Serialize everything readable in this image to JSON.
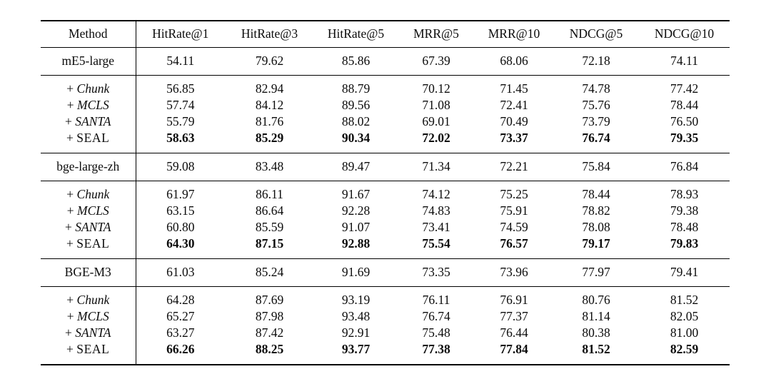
{
  "colors": {
    "background": "#ffffff",
    "text": "#0b0b0b",
    "rule": "#000000"
  },
  "table": {
    "columns": [
      "Method",
      "HitRate@1",
      "HitRate@3",
      "HitRate@5",
      "MRR@5",
      "MRR@10",
      "NDCG@5",
      "NDCG@10"
    ],
    "groups": [
      {
        "base": {
          "label": "mE5-large",
          "bold": false,
          "values": [
            "54.11",
            "79.62",
            "85.86",
            "67.39",
            "68.06",
            "72.18",
            "74.11"
          ]
        },
        "variants": [
          {
            "prefix": "+",
            "name": "Chunk",
            "italic": true,
            "spaced": false,
            "bold": false,
            "values": [
              "56.85",
              "82.94",
              "88.79",
              "70.12",
              "71.45",
              "74.78",
              "77.42"
            ]
          },
          {
            "prefix": "+",
            "name": "MCLS",
            "italic": true,
            "spaced": false,
            "bold": false,
            "values": [
              "57.74",
              "84.12",
              "89.56",
              "71.08",
              "72.41",
              "75.76",
              "78.44"
            ]
          },
          {
            "prefix": "+",
            "name": "SANTA",
            "italic": true,
            "spaced": false,
            "bold": false,
            "values": [
              "55.79",
              "81.76",
              "88.02",
              "69.01",
              "70.49",
              "73.79",
              "76.50"
            ]
          },
          {
            "prefix": "+",
            "name": "SEAL",
            "italic": false,
            "spaced": true,
            "bold": true,
            "values": [
              "58.63",
              "85.29",
              "90.34",
              "72.02",
              "73.37",
              "76.74",
              "79.35"
            ]
          }
        ]
      },
      {
        "base": {
          "label": "bge-large-zh",
          "bold": false,
          "values": [
            "59.08",
            "83.48",
            "89.47",
            "71.34",
            "72.21",
            "75.84",
            "76.84"
          ]
        },
        "variants": [
          {
            "prefix": "+",
            "name": "Chunk",
            "italic": true,
            "spaced": false,
            "bold": false,
            "values": [
              "61.97",
              "86.11",
              "91.67",
              "74.12",
              "75.25",
              "78.44",
              "78.93"
            ]
          },
          {
            "prefix": "+",
            "name": "MCLS",
            "italic": true,
            "spaced": false,
            "bold": false,
            "values": [
              "63.15",
              "86.64",
              "92.28",
              "74.83",
              "75.91",
              "78.82",
              "79.38"
            ]
          },
          {
            "prefix": "+",
            "name": "SANTA",
            "italic": true,
            "spaced": false,
            "bold": false,
            "values": [
              "60.80",
              "85.59",
              "91.07",
              "73.41",
              "74.59",
              "78.08",
              "78.48"
            ]
          },
          {
            "prefix": "+",
            "name": "SEAL",
            "italic": false,
            "spaced": true,
            "bold": true,
            "values": [
              "64.30",
              "87.15",
              "92.88",
              "75.54",
              "76.57",
              "79.17",
              "79.83"
            ]
          }
        ]
      },
      {
        "base": {
          "label": "BGE-M3",
          "bold": false,
          "values": [
            "61.03",
            "85.24",
            "91.69",
            "73.35",
            "73.96",
            "77.97",
            "79.41"
          ]
        },
        "variants": [
          {
            "prefix": "+",
            "name": "Chunk",
            "italic": true,
            "spaced": false,
            "bold": false,
            "values": [
              "64.28",
              "87.69",
              "93.19",
              "76.11",
              "76.91",
              "80.76",
              "81.52"
            ]
          },
          {
            "prefix": "+",
            "name": "MCLS",
            "italic": true,
            "spaced": false,
            "bold": false,
            "values": [
              "65.27",
              "87.98",
              "93.48",
              "76.74",
              "77.37",
              "81.14",
              "82.05"
            ]
          },
          {
            "prefix": "+",
            "name": "SANTA",
            "italic": true,
            "spaced": false,
            "bold": false,
            "values": [
              "63.27",
              "87.42",
              "92.91",
              "75.48",
              "76.44",
              "80.38",
              "81.00"
            ]
          },
          {
            "prefix": "+",
            "name": "SEAL",
            "italic": false,
            "spaced": true,
            "bold": true,
            "values": [
              "66.26",
              "88.25",
              "93.77",
              "77.38",
              "77.84",
              "81.52",
              "82.59"
            ]
          }
        ]
      }
    ]
  }
}
